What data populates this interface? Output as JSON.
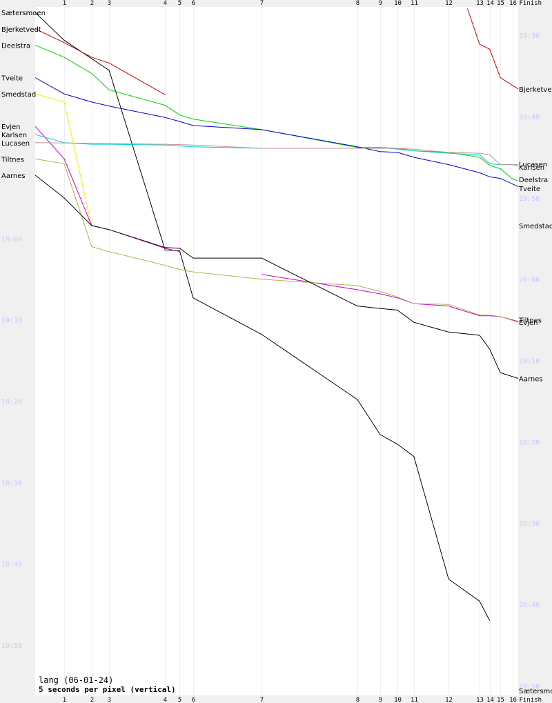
{
  "footer": {
    "title": "lang (06-01-24)",
    "scale": "5 seconds per pixel (vertical)"
  },
  "chart_data": {
    "type": "line",
    "title": "lang (06-01-24)",
    "subtitle": "5 seconds per pixel (vertical)",
    "controls": [
      "1",
      "2",
      "3",
      "4",
      "5",
      "6",
      "7",
      "8",
      "9",
      "10",
      "11",
      "12",
      "13",
      "14",
      "15",
      "16",
      "Finish"
    ],
    "control_fraction": [
      0.06,
      0.117,
      0.153,
      0.269,
      0.299,
      0.327,
      0.469,
      0.667,
      0.714,
      0.75,
      0.784,
      0.856,
      0.92,
      0.941,
      0.963,
      0.989,
      1.0
    ],
    "left_axis": {
      "labels": [
        "19:00",
        "19:10",
        "19:20",
        "19:30",
        "19:40",
        "19:50"
      ],
      "values": [
        0,
        10,
        20,
        30,
        40,
        50
      ]
    },
    "right_axis": {
      "labels": [
        "19:30",
        "19:40",
        "19:50",
        "20:00",
        "20:10",
        "20:20",
        "20:30",
        "20:40",
        "20:50"
      ],
      "values": [
        -25,
        -15,
        -5,
        5,
        15,
        25,
        35,
        45,
        55
      ]
    },
    "y_unit": "minutes relative to 19:00",
    "series": [
      {
        "name": "Sætersmoen",
        "color": "#000000",
        "points": [
          [
            0,
            -27.8
          ],
          [
            0.06,
            -24.4
          ],
          [
            0.153,
            -20.7
          ],
          [
            0.269,
            1.4
          ],
          [
            0.299,
            1.5
          ],
          [
            0.327,
            7.3
          ],
          [
            0.469,
            11.8
          ],
          [
            0.667,
            19.8
          ],
          [
            0.714,
            24.1
          ],
          [
            0.75,
            25.3
          ],
          [
            0.784,
            26.8
          ],
          [
            0.856,
            41.9
          ],
          [
            0.92,
            44.6
          ],
          [
            0.941,
            47.0
          ]
        ]
      },
      {
        "name": "Bjerketvedt",
        "color": "#cc0000",
        "points": [
          [
            0,
            -25.8
          ],
          [
            0.06,
            -24.1
          ],
          [
            0.117,
            -22.3
          ],
          [
            0.153,
            -21.6
          ],
          [
            0.269,
            -17.7
          ]
        ]
      },
      {
        "name": "Bjerketvedt",
        "color": "#cc0000",
        "points": [
          [
            0.895,
            -28.3
          ],
          [
            0.92,
            -23.9
          ],
          [
            0.941,
            -23.3
          ],
          [
            0.963,
            -19.8
          ],
          [
            1.0,
            -18.4
          ]
        ]
      },
      {
        "name": "Deelstra",
        "color": "#00d000",
        "points": [
          [
            0,
            -23.8
          ],
          [
            0.06,
            -22.3
          ],
          [
            0.117,
            -20.3
          ],
          [
            0.153,
            -18.3
          ],
          [
            0.269,
            -16.4
          ],
          [
            0.299,
            -15.2
          ],
          [
            0.327,
            -14.7
          ],
          [
            0.469,
            -13.4
          ],
          [
            0.667,
            -11.2
          ],
          [
            0.714,
            -11.2
          ],
          [
            0.75,
            -11.1
          ],
          [
            0.784,
            -10.8
          ],
          [
            0.856,
            -10.6
          ],
          [
            0.92,
            -10.0
          ],
          [
            0.941,
            -9.0
          ],
          [
            0.963,
            -8.6
          ],
          [
            0.989,
            -7.3
          ],
          [
            1.0,
            -7.1
          ]
        ]
      },
      {
        "name": "Tveite",
        "color": "#0000cc",
        "points": [
          [
            0,
            -19.8
          ],
          [
            0.06,
            -17.8
          ],
          [
            0.117,
            -16.8
          ],
          [
            0.153,
            -16.3
          ],
          [
            0.269,
            -14.9
          ],
          [
            0.299,
            -14.4
          ],
          [
            0.327,
            -13.9
          ],
          [
            0.469,
            -13.4
          ],
          [
            0.667,
            -11.3
          ],
          [
            0.714,
            -10.7
          ],
          [
            0.75,
            -10.6
          ],
          [
            0.784,
            -10.0
          ],
          [
            0.856,
            -9.1
          ],
          [
            0.92,
            -8.1
          ],
          [
            0.941,
            -7.6
          ],
          [
            0.963,
            -7.4
          ],
          [
            1.0,
            -6.4
          ]
        ]
      },
      {
        "name": "Smedstad",
        "color": "#f0f000",
        "points": [
          [
            0,
            -17.8
          ],
          [
            0.06,
            -16.8
          ],
          [
            0.117,
            -1.5
          ]
        ]
      },
      {
        "name": "Evjen",
        "color": "#d000d0",
        "points": [
          [
            0,
            -13.8
          ],
          [
            0.06,
            -9.8
          ],
          [
            0.117,
            -1.6
          ],
          [
            0.153,
            -1.1
          ],
          [
            0.269,
            1.2
          ],
          [
            0.299,
            1.6
          ]
        ]
      },
      {
        "name": "Evjen",
        "color": "#d000d0",
        "points": [
          [
            0.469,
            4.4
          ],
          [
            0.667,
            6.3
          ],
          [
            0.714,
            6.8
          ],
          [
            0.75,
            7.3
          ],
          [
            0.784,
            8.0
          ],
          [
            0.856,
            8.3
          ],
          [
            0.92,
            9.5
          ],
          [
            0.941,
            9.5
          ],
          [
            0.963,
            9.6
          ],
          [
            1.0,
            10.2
          ]
        ]
      },
      {
        "name": "Karlsen",
        "color": "#00d0d0",
        "points": [
          [
            0,
            -12.8
          ],
          [
            0.06,
            -11.8
          ],
          [
            0.117,
            -11.6
          ],
          [
            0.153,
            -11.6
          ],
          [
            0.269,
            -11.5
          ],
          [
            0.299,
            -11.4
          ],
          [
            0.327,
            -11.3
          ],
          [
            0.469,
            -11.1
          ],
          [
            0.667,
            -11.1
          ],
          [
            0.714,
            -11.2
          ],
          [
            0.75,
            -11.0
          ],
          [
            0.784,
            -10.8
          ],
          [
            0.856,
            -10.5
          ],
          [
            0.92,
            -10.3
          ],
          [
            0.941,
            -9.2
          ],
          [
            0.963,
            -9.1
          ],
          [
            0.989,
            -9.1
          ],
          [
            1.0,
            -8.9
          ]
        ]
      },
      {
        "name": "Lucasen",
        "color": "#c09090",
        "points": [
          [
            0,
            -11.8
          ],
          [
            0.153,
            -11.7
          ],
          [
            0.269,
            -11.6
          ],
          [
            0.327,
            -11.5
          ],
          [
            0.469,
            -11.1
          ],
          [
            0.667,
            -11.1
          ],
          [
            0.714,
            -11.1
          ],
          [
            0.75,
            -11.1
          ],
          [
            0.784,
            -11.0
          ],
          [
            0.856,
            -10.6
          ],
          [
            0.92,
            -10.5
          ],
          [
            0.941,
            -10.3
          ],
          [
            0.963,
            -9.1
          ],
          [
            0.989,
            -9.1
          ],
          [
            1.0,
            -9.1
          ]
        ]
      },
      {
        "name": "Tiltnes",
        "color": "#b0b050",
        "points": [
          [
            0,
            -9.8
          ],
          [
            0.06,
            -9.2
          ],
          [
            0.117,
            1.0
          ],
          [
            0.153,
            1.6
          ],
          [
            0.269,
            3.3
          ],
          [
            0.299,
            3.8
          ],
          [
            0.327,
            4.1
          ],
          [
            0.469,
            5.0
          ],
          [
            0.667,
            5.8
          ],
          [
            0.714,
            6.5
          ],
          [
            0.75,
            7.2
          ],
          [
            0.784,
            8.0
          ],
          [
            0.856,
            8.1
          ],
          [
            0.92,
            9.4
          ],
          [
            0.941,
            9.4
          ],
          [
            0.963,
            9.6
          ],
          [
            1.0,
            10.3
          ]
        ]
      },
      {
        "name": "Aarnes",
        "color": "#000000",
        "points": [
          [
            0,
            -7.8
          ],
          [
            0.06,
            -5.0
          ],
          [
            0.117,
            -1.6
          ],
          [
            0.153,
            -1.1
          ],
          [
            0.269,
            1.1
          ],
          [
            0.299,
            1.2
          ],
          [
            0.327,
            2.4
          ],
          [
            0.469,
            2.4
          ],
          [
            0.667,
            8.3
          ],
          [
            0.714,
            8.6
          ],
          [
            0.75,
            8.8
          ],
          [
            0.784,
            10.3
          ],
          [
            0.856,
            11.5
          ],
          [
            0.92,
            11.9
          ],
          [
            0.941,
            13.6
          ],
          [
            0.963,
            16.5
          ],
          [
            1.0,
            17.2
          ]
        ]
      }
    ],
    "left_names": [
      {
        "name": "Sætersmoen",
        "y": -27.8
      },
      {
        "name": "Bjerketvedt",
        "y": -25.8
      },
      {
        "name": "Deelstra",
        "y": -23.8
      },
      {
        "name": "Tveite",
        "y": -19.8
      },
      {
        "name": "Smedstad",
        "y": -17.8
      },
      {
        "name": "Evjen",
        "y": -13.8
      },
      {
        "name": "Karlsen",
        "y": -12.8
      },
      {
        "name": "Lucasen",
        "y": -11.8
      },
      {
        "name": "Tiltnes",
        "y": -9.8
      },
      {
        "name": "Aarnes",
        "y": -7.8
      }
    ],
    "right_names": [
      {
        "name": "Bjerketvedt",
        "y": -18.4
      },
      {
        "name": "Lucasen",
        "y": -9.2
      },
      {
        "name": "Karlsen",
        "y": -8.8
      },
      {
        "name": "Deelstra",
        "y": -7.3
      },
      {
        "name": "Tveite",
        "y": -6.2
      },
      {
        "name": "Smedstad",
        "y": -1.6
      },
      {
        "name": "Tiltnes",
        "y": 10.0
      },
      {
        "name": "Evjen",
        "y": 10.3
      },
      {
        "name": "Aarnes",
        "y": 17.2
      },
      {
        "name": "Sætersmoen",
        "y": 55.6
      }
    ],
    "ylim": [
      -28.5,
      56.2
    ],
    "grid": true
  }
}
